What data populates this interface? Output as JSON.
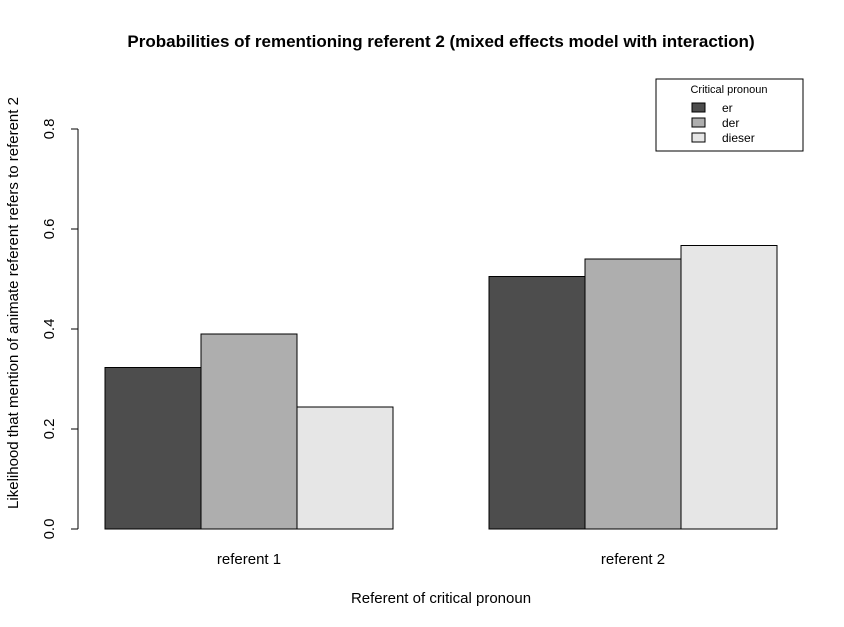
{
  "chart_data": {
    "type": "bar",
    "title": "Probabilities of rementioning referent 2 (mixed effects model with interaction)",
    "xlabel": "Referent of critical pronoun",
    "ylabel": "Likelihood that mention of animate referent refers to referent 2",
    "categories": [
      "referent 1",
      "referent 2"
    ],
    "series": [
      {
        "name": "er",
        "color": "#4d4d4d",
        "values": [
          0.323,
          0.505
        ]
      },
      {
        "name": "der",
        "color": "#aeaeae",
        "values": [
          0.39,
          0.54
        ]
      },
      {
        "name": "dieser",
        "color": "#e6e6e6",
        "values": [
          0.244,
          0.567
        ]
      }
    ],
    "ylim": [
      0,
      0.8
    ],
    "yticks": [
      "0.0",
      "0.2",
      "0.4",
      "0.6",
      "0.8"
    ],
    "legend": {
      "title": "Critical pronoun",
      "position": "top-right"
    },
    "grid": false
  }
}
